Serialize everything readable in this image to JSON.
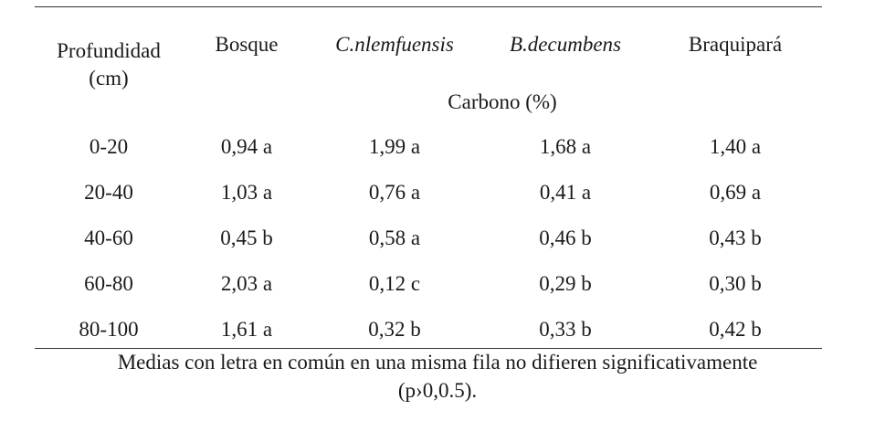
{
  "table": {
    "header": {
      "depth_line1": "Profundidad",
      "depth_line2": "(cm)",
      "columns": [
        "Bosque",
        "C.nlemfuensis",
        "B.decumbens",
        "Braquipará"
      ],
      "subheader": "Carbono (%)"
    },
    "rows": [
      {
        "depth": "0-20",
        "values": [
          "0,94 a",
          "1,99 a",
          "1,68 a",
          "1,40 a"
        ]
      },
      {
        "depth": "20-40",
        "values": [
          "1,03 a",
          "0,76 a",
          "0,41 a",
          "0,69 a"
        ]
      },
      {
        "depth": "40-60",
        "values": [
          "0,45 b",
          "0,58 a",
          "0,46 b",
          "0,43 b"
        ]
      },
      {
        "depth": "60-80",
        "values": [
          "2,03 a",
          "0,12 c",
          "0,29 b",
          "0,30 b"
        ]
      },
      {
        "depth": "80-100",
        "values": [
          "1,61 a",
          "0,32 b",
          "0,33 b",
          "0,42 b"
        ]
      }
    ]
  },
  "caption": {
    "line1": "Medias con letra en común en una misma fila no difieren significativamente",
    "line2": "(p›0,0.5)."
  }
}
